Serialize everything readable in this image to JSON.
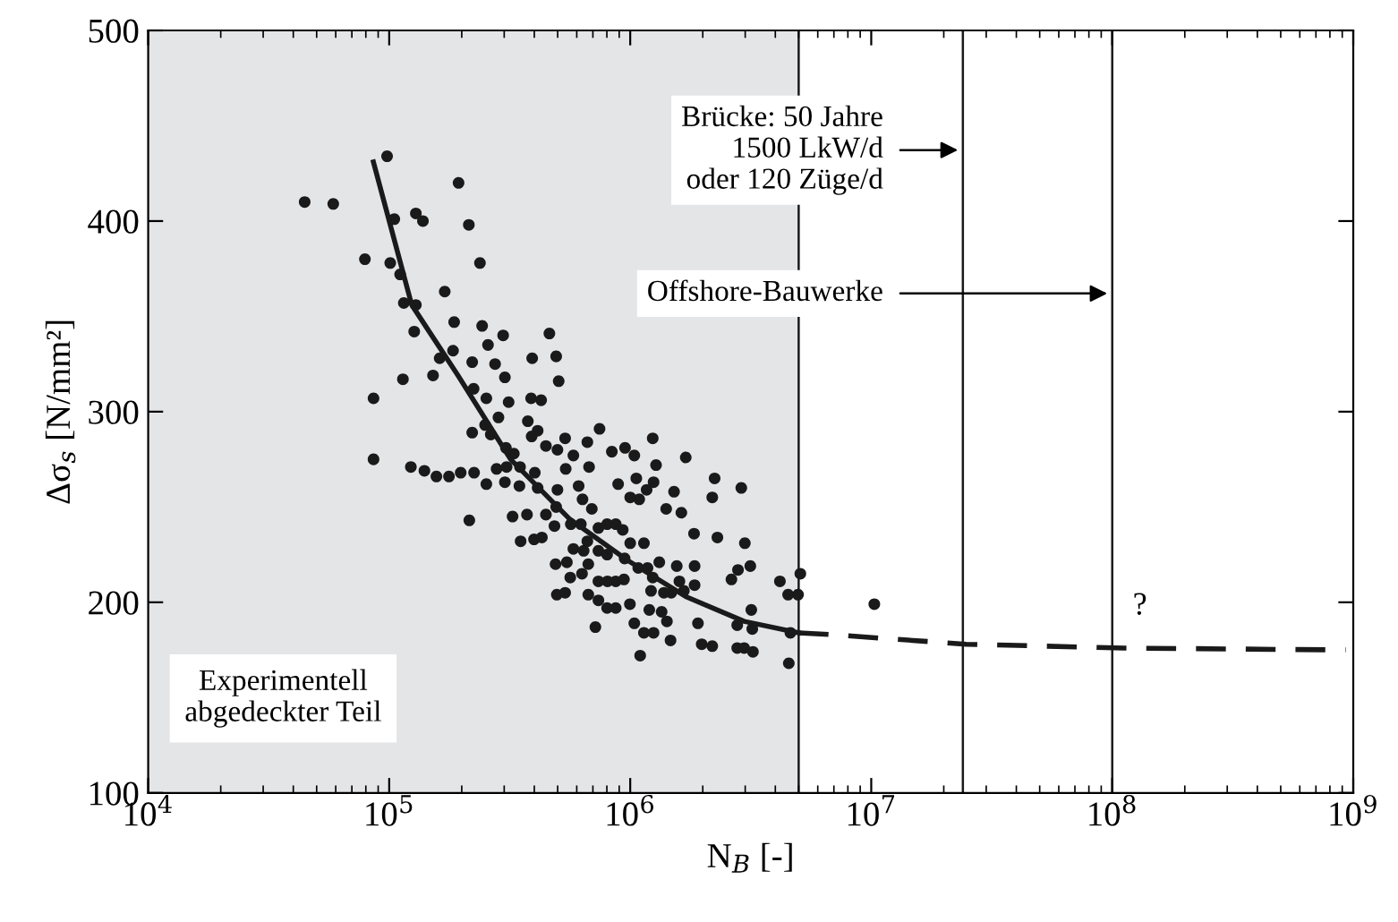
{
  "chart_data": {
    "type": "scatter",
    "xlabel": "N$_{B}$ [-]",
    "ylabel": "Δσ$_{s}$ [N/mm²]",
    "log": "x",
    "xlim": [
      10000,
      1000000000
    ],
    "ylim": [
      100,
      500
    ],
    "xticks": [
      {
        "value": 10000,
        "label": "10$^{4}$"
      },
      {
        "value": 100000,
        "label": "10$^{5}$"
      },
      {
        "value": 1000000,
        "label": "10$^{6}$"
      },
      {
        "value": 10000000,
        "label": "10$^{7}$"
      },
      {
        "value": 100000000,
        "label": "10$^{8}$"
      },
      {
        "value": 1000000000,
        "label": "10$^{9}$"
      }
    ],
    "yticks": [
      100,
      200,
      300,
      400,
      500
    ],
    "grid": false,
    "legend": false,
    "series": [
      {
        "color": "#1a1a1a",
        "marker": "circle",
        "x": [
          98000.0,
          44600.0,
          58600.0,
          194000.0,
          105000.0,
          129000.0,
          138000.0,
          214000.0,
          79300.0,
          101000.0,
          111000.0,
          238000.0,
          115000.0,
          129000.0,
          170000.0,
          186000.0,
          127000.0,
          243000.0,
          297000.0,
          462000.0,
          257000.0,
          162000.0,
          184000.0,
          221000.0,
          275000.0,
          392000.0,
          493000.0,
          114000.0,
          152000.0,
          302000.0,
          505000.0,
          86100.0,
          224000.0,
          253000.0,
          313000.0,
          388000.0,
          427000.0,
          284000.0,
          376000.0,
          413000.0,
          221000.0,
          250000.0,
          264000.0,
          305000.0,
          329000.0,
          390000.0,
          447000.0,
          499000.0,
          86100.0,
          123000.0,
          140000.0,
          157000.0,
          177000.0,
          198000.0,
          225000.0,
          279000.0,
          307000.0,
          349000.0,
          402000.0,
          253000.0,
          302000.0,
          347000.0,
          413000.0,
          499000.0,
          215000.0,
          325000.0,
          373000.0,
          447000.0,
          485000.0,
          537000.0,
          581000.0,
          664000.0,
          746000.0,
          839000.0,
          952000.0,
          1040000.0,
          1240000.0,
          1280000.0,
          1700000.0,
          540000.0,
          675000.0,
          611000.0,
          891000.0,
          1060000.0,
          1250000.0,
          1170000.0,
          1000000.0,
          1090000.0,
          1520000.0,
          2240000.0,
          2190000.0,
          2890000.0,
          1410000.0,
          1630000.0,
          634000.0,
          693000.0,
          493000.0,
          567000.0,
          624000.0,
          738000.0,
          802000.0,
          871000.0,
          931000.0,
          351000.0,
          399000.0,
          430000.0,
          664000.0,
          1000000.0,
          1140000.0,
          1840000.0,
          2300000.0,
          2990000.0,
          581000.0,
          641000.0,
          738000.0,
          802000.0,
          948000.0,
          490000.0,
          546000.0,
          670000.0,
          1080000.0,
          1180000.0,
          1320000.0,
          1560000.0,
          1850000.0,
          2800000.0,
          3150000.0,
          564000.0,
          631000.0,
          738000.0,
          805000.0,
          871000.0,
          942000.0,
          1240000.0,
          1600000.0,
          1670000.0,
          1850000.0,
          2630000.0,
          4180000.0,
          5080000.0,
          4520000.0,
          4970000.0,
          496000.0,
          537000.0,
          670000.0,
          738000.0,
          802000.0,
          871000.0,
          997000.0,
          1220000.0,
          1380000.0,
          1480000.0,
          1200000.0,
          1350000.0,
          1040000.0,
          1420000.0,
          717000.0,
          1140000.0,
          1250000.0,
          1470000.0,
          1910000.0,
          1980000.0,
          2190000.0,
          2780000.0,
          3210000.0,
          2780000.0,
          2970000.0,
          3230000.0,
          4620000.0,
          3180000.0,
          1100000.0,
          4550000.0,
          10300000.0
        ],
        "values": [
          434,
          410,
          409,
          420,
          401,
          404,
          400,
          398,
          380,
          378,
          372,
          378,
          357,
          356,
          363,
          347,
          342,
          345,
          340,
          341,
          335,
          328,
          332,
          326,
          325,
          328,
          329,
          317,
          319,
          318,
          316,
          307,
          312,
          307,
          305,
          307,
          306,
          297,
          295,
          290,
          289,
          293,
          288,
          281,
          278,
          287,
          282,
          280,
          275,
          271,
          269,
          266,
          266,
          268,
          268,
          270,
          271,
          271,
          268,
          262,
          263,
          261,
          260,
          259,
          243,
          245,
          246,
          246,
          240,
          286,
          277,
          284,
          291,
          279,
          281,
          277,
          286,
          272,
          276,
          270,
          271,
          261,
          262,
          265,
          263,
          259,
          255,
          254,
          258,
          265,
          255,
          260,
          249,
          247,
          254,
          249,
          250,
          241,
          241,
          239,
          241,
          241,
          238,
          232,
          233,
          234,
          232,
          231,
          231,
          236,
          234,
          231,
          228,
          227,
          227,
          225,
          223,
          220,
          221,
          220,
          218,
          218,
          221,
          219,
          219,
          217,
          219,
          213,
          215,
          211,
          211,
          211,
          212,
          213,
          211,
          206,
          209,
          212,
          211,
          215,
          204,
          204,
          204,
          205,
          204,
          201,
          197,
          197,
          199,
          206,
          205,
          205,
          196,
          195,
          189,
          190,
          187,
          184,
          184,
          180,
          189,
          178,
          177,
          188,
          186,
          176,
          176,
          174,
          184,
          196,
          172,
          168,
          199
        ]
      },
      {
        "type": "line",
        "color": "#1a1a1a",
        "line_style": "solid",
        "marker": "none",
        "x": [
          86000.0,
          124000.0,
          193000.0,
          319000.0,
          557000.0,
          975000.0,
          1700000.0,
          2970000.0,
          5000000.0
        ],
        "values": [
          431,
          356,
          319,
          275,
          244,
          222,
          203,
          190,
          184
        ]
      },
      {
        "type": "line",
        "color": "#1a1a1a",
        "line_style": "dashed",
        "marker": "none",
        "x": [
          5000000.0,
          6870000.0,
          24800000.0,
          112000000.0,
          930000000.0
        ],
        "values": [
          184,
          183,
          178,
          176,
          175
        ]
      }
    ],
    "bands": [
      {
        "axis": "x",
        "from": 10000,
        "to": 5000000,
        "label": "Experimentell\nabgedeckter Teil",
        "color": "#e4e5e7"
      }
    ],
    "ref_lines": [
      {
        "axis": "x",
        "value": 5000000,
        "color": "#1a1a1a"
      },
      {
        "axis": "x",
        "value": 24000000,
        "color": "#1a1a1a"
      },
      {
        "axis": "x",
        "value": 100000000,
        "color": "#1a1a1a"
      }
    ],
    "annotations": [
      "Brücke: 50 Jahre\n1500 LkW/d\noder 120 Züge/d",
      "Offshore-Bauwerke",
      "?"
    ]
  }
}
